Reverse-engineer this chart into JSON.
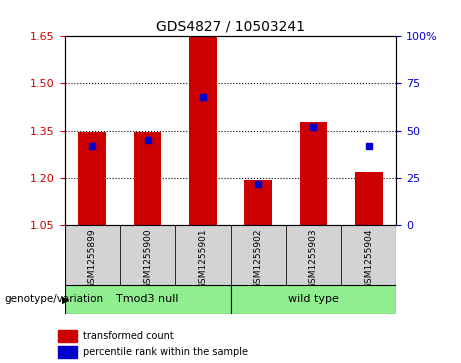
{
  "title": "GDS4827 / 10503241",
  "samples": [
    "GSM1255899",
    "GSM1255900",
    "GSM1255901",
    "GSM1255902",
    "GSM1255903",
    "GSM1255904"
  ],
  "red_values": [
    1.347,
    1.345,
    1.648,
    1.192,
    1.378,
    1.22
  ],
  "blue_values": [
    0.42,
    0.45,
    0.68,
    0.22,
    0.52,
    0.42
  ],
  "y_min": 1.05,
  "y_max": 1.65,
  "y_ticks_left": [
    1.05,
    1.2,
    1.35,
    1.5,
    1.65
  ],
  "y_ticks_right": [
    0,
    25,
    50,
    75,
    100
  ],
  "group1_label": "Tmod3 null",
  "group2_label": "wild type",
  "genotype_label": "genotype/variation",
  "legend_items": [
    {
      "label": "transformed count",
      "color": "#CC0000"
    },
    {
      "label": "percentile rank within the sample",
      "color": "#0000CC"
    }
  ],
  "bar_color": "#CC0000",
  "dot_color": "#0000CC",
  "bg_color": "#D3D3D3",
  "green_color": "#90EE90",
  "plot_bg": "#FFFFFF",
  "axis_color_left": "#CC0000",
  "axis_color_right": "#0000CC"
}
